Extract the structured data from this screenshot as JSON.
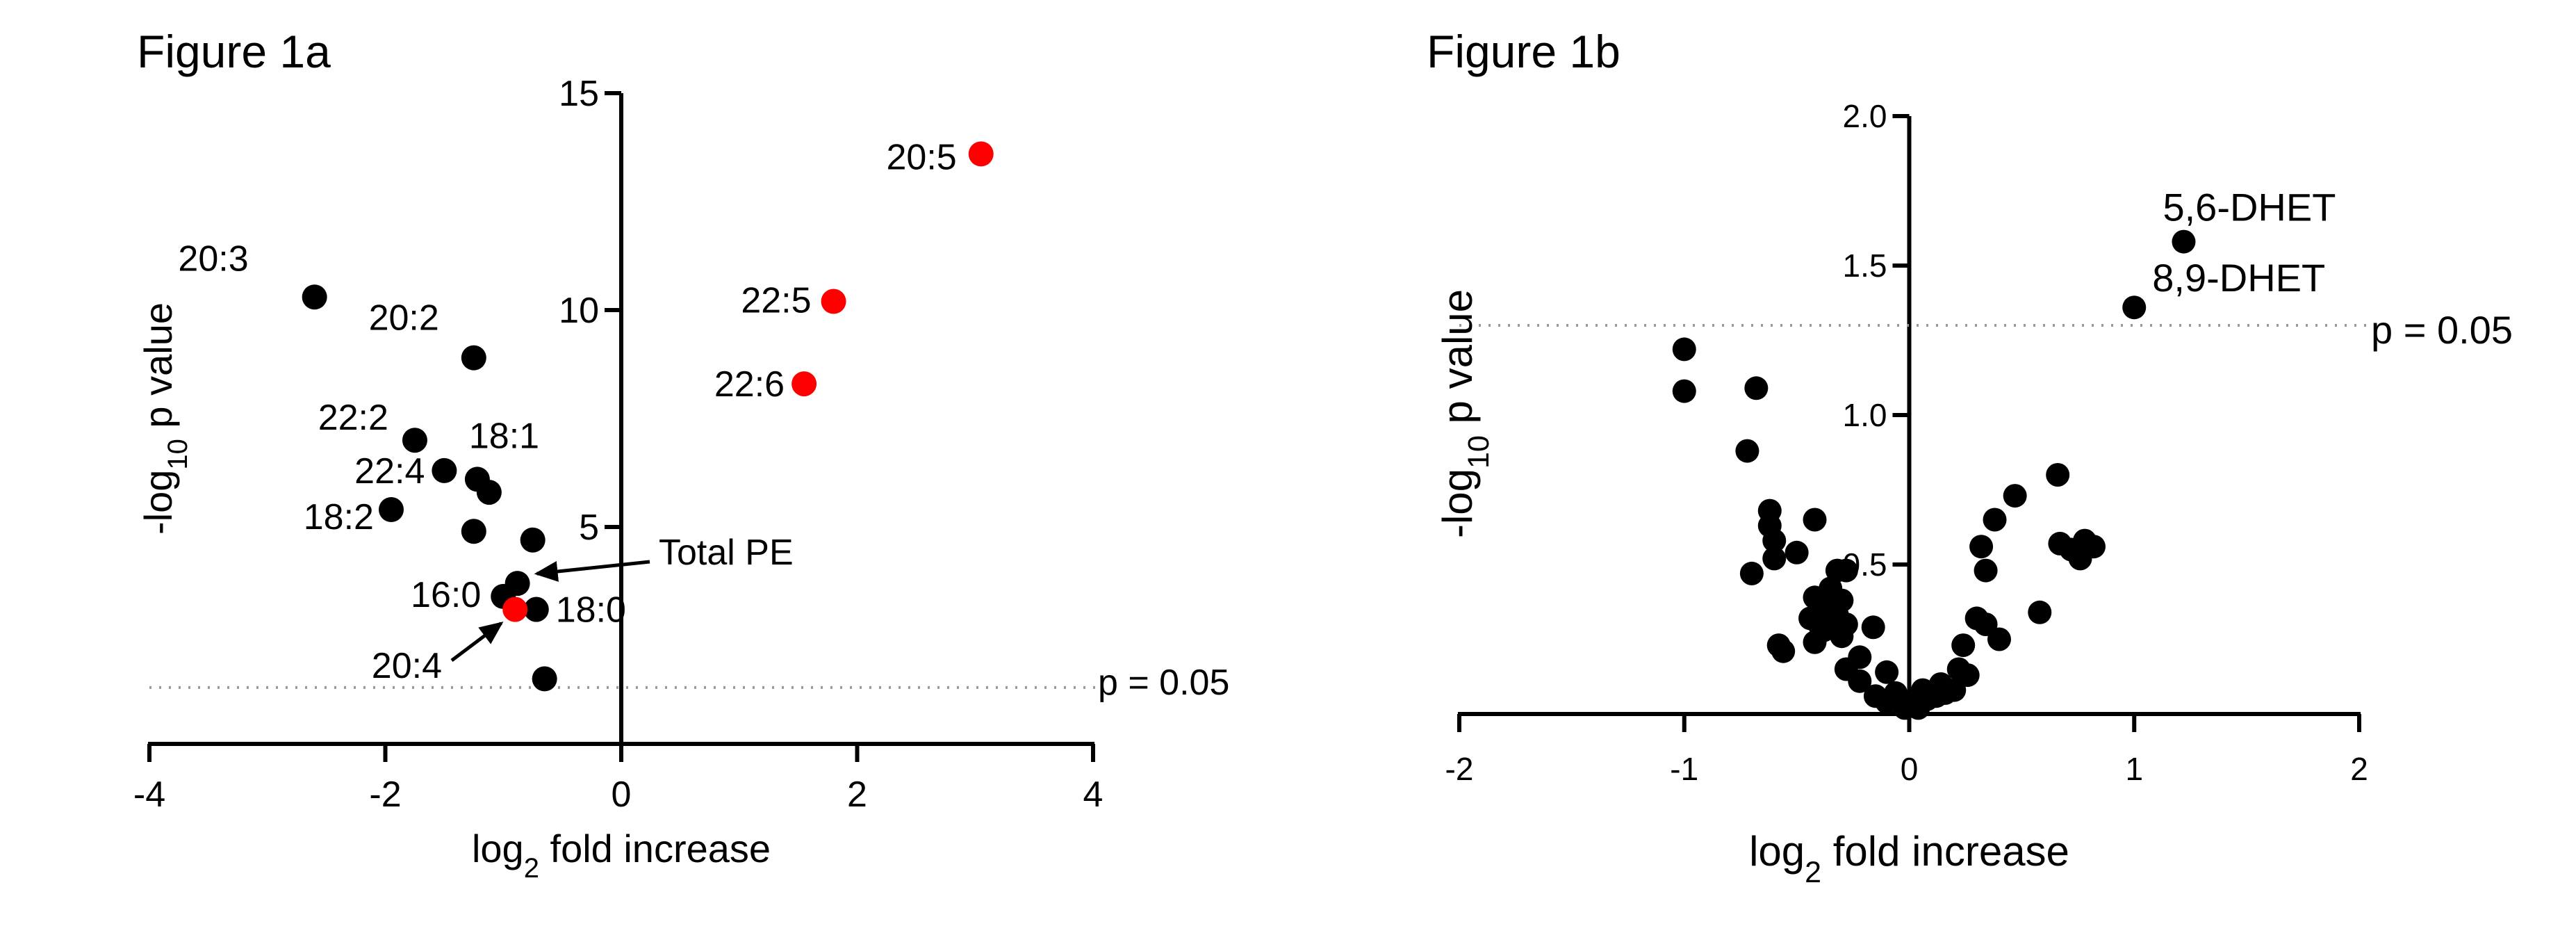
{
  "colors": {
    "black": "#000000",
    "red": "#ff0000",
    "threshold": "#9a9a9a"
  },
  "chart_data": [
    {
      "type": "scatter",
      "title": "Figure 1a",
      "xlabel_parts": [
        "log",
        "2",
        " fold increase"
      ],
      "ylabel_parts": [
        "-log",
        "10",
        " p value"
      ],
      "xlim": [
        -4,
        4
      ],
      "ylim": [
        0,
        15
      ],
      "xticks": [
        -4,
        -2,
        0,
        2,
        4
      ],
      "yticks": [
        5,
        10,
        15
      ],
      "threshold": {
        "y": 1.3,
        "label": "p = 0.05"
      },
      "points": [
        {
          "x": -2.6,
          "y": 10.3,
          "label": "20:3",
          "color": "black"
        },
        {
          "x": -1.25,
          "y": 8.9,
          "label": "20:2",
          "color": "black"
        },
        {
          "x": -1.75,
          "y": 7.0,
          "label": "22:2",
          "color": "black"
        },
        {
          "x": -1.5,
          "y": 6.3,
          "label": "22:4",
          "color": "black"
        },
        {
          "x": -1.22,
          "y": 6.1,
          "label": "18:1",
          "color": "black"
        },
        {
          "x": -1.12,
          "y": 5.8,
          "label": "",
          "color": "black"
        },
        {
          "x": -1.95,
          "y": 5.4,
          "label": "18:2",
          "color": "black"
        },
        {
          "x": -1.25,
          "y": 4.9,
          "label": "",
          "color": "black"
        },
        {
          "x": -0.75,
          "y": 4.7,
          "label": "",
          "color": "black"
        },
        {
          "x": -0.88,
          "y": 3.7,
          "label": "",
          "color": "black"
        },
        {
          "x": -1.0,
          "y": 3.4,
          "label": "16:0",
          "color": "black"
        },
        {
          "x": -0.72,
          "y": 3.1,
          "label": "18:0",
          "color": "black"
        },
        {
          "x": -0.65,
          "y": 1.5,
          "label": "",
          "color": "black"
        },
        {
          "x": -0.9,
          "y": 3.1,
          "label": "",
          "color": "red"
        },
        {
          "x": 1.55,
          "y": 8.3,
          "label": "22:6",
          "color": "red"
        },
        {
          "x": 1.8,
          "y": 10.2,
          "label": "22:5",
          "color": "red"
        },
        {
          "x": 3.05,
          "y": 13.6,
          "label": "20:5",
          "color": "red"
        }
      ],
      "annotations": [
        {
          "text": "Total PE",
          "x": -0.88,
          "y": 3.7
        },
        {
          "text": "20:4",
          "x": -0.9,
          "y": 3.1
        }
      ]
    },
    {
      "type": "scatter",
      "title": "Figure 1b",
      "xlabel_parts": [
        "log",
        "2",
        " fold increase"
      ],
      "ylabel_parts": [
        "-log",
        "10",
        " p value"
      ],
      "xlim": [
        -2,
        2
      ],
      "ylim": [
        0,
        2.0
      ],
      "xticks": [
        -2,
        -1,
        0,
        1,
        2
      ],
      "yticks": [
        "0.5",
        "1.0",
        "1.5",
        "2.0"
      ],
      "threshold": {
        "y": 1.3,
        "label": "p = 0.05"
      },
      "points": [
        {
          "x": 1.22,
          "y": 1.58,
          "label": "5,6-DHET"
        },
        {
          "x": 1.0,
          "y": 1.36,
          "label": "8,9-DHET"
        },
        {
          "x": -1.0,
          "y": 1.22,
          "label": ""
        },
        {
          "x": -1.0,
          "y": 1.08,
          "label": ""
        },
        {
          "x": -0.68,
          "y": 1.09,
          "label": ""
        },
        {
          "x": -0.72,
          "y": 0.88,
          "label": ""
        },
        {
          "x": -0.62,
          "y": 0.68,
          "label": ""
        },
        {
          "x": -0.62,
          "y": 0.63,
          "label": ""
        },
        {
          "x": -0.6,
          "y": 0.58,
          "label": ""
        },
        {
          "x": -0.6,
          "y": 0.52,
          "label": ""
        },
        {
          "x": -0.5,
          "y": 0.54,
          "label": ""
        },
        {
          "x": -0.42,
          "y": 0.65,
          "label": ""
        },
        {
          "x": -0.7,
          "y": 0.47,
          "label": ""
        },
        {
          "x": -0.32,
          "y": 0.48,
          "label": ""
        },
        {
          "x": -0.28,
          "y": 0.48,
          "label": ""
        },
        {
          "x": -0.35,
          "y": 0.42,
          "label": ""
        },
        {
          "x": -0.3,
          "y": 0.38,
          "label": ""
        },
        {
          "x": -0.42,
          "y": 0.39,
          "label": ""
        },
        {
          "x": -0.38,
          "y": 0.36,
          "label": ""
        },
        {
          "x": -0.32,
          "y": 0.33,
          "label": ""
        },
        {
          "x": -0.44,
          "y": 0.32,
          "label": ""
        },
        {
          "x": -0.38,
          "y": 0.28,
          "label": ""
        },
        {
          "x": -0.4,
          "y": 0.3,
          "label": ""
        },
        {
          "x": -0.28,
          "y": 0.3,
          "label": ""
        },
        {
          "x": -0.3,
          "y": 0.26,
          "label": ""
        },
        {
          "x": -0.16,
          "y": 0.29,
          "label": ""
        },
        {
          "x": -0.42,
          "y": 0.24,
          "label": ""
        },
        {
          "x": -0.58,
          "y": 0.23,
          "label": ""
        },
        {
          "x": -0.56,
          "y": 0.21,
          "label": ""
        },
        {
          "x": -0.22,
          "y": 0.19,
          "label": ""
        },
        {
          "x": -0.28,
          "y": 0.15,
          "label": ""
        },
        {
          "x": -0.1,
          "y": 0.14,
          "label": ""
        },
        {
          "x": -0.22,
          "y": 0.11,
          "label": ""
        },
        {
          "x": -0.06,
          "y": 0.07,
          "label": ""
        },
        {
          "x": -0.15,
          "y": 0.06,
          "label": ""
        },
        {
          "x": -0.1,
          "y": 0.04,
          "label": ""
        },
        {
          "x": -0.02,
          "y": 0.02,
          "label": ""
        },
        {
          "x": 0.02,
          "y": 0.04,
          "label": ""
        },
        {
          "x": 0.04,
          "y": 0.02,
          "label": ""
        },
        {
          "x": 0.06,
          "y": 0.08,
          "label": ""
        },
        {
          "x": 0.08,
          "y": 0.05,
          "label": ""
        },
        {
          "x": 0.12,
          "y": 0.06,
          "label": ""
        },
        {
          "x": 0.14,
          "y": 0.1,
          "label": ""
        },
        {
          "x": 0.16,
          "y": 0.07,
          "label": ""
        },
        {
          "x": 0.2,
          "y": 0.08,
          "label": ""
        },
        {
          "x": 0.22,
          "y": 0.15,
          "label": ""
        },
        {
          "x": 0.26,
          "y": 0.13,
          "label": ""
        },
        {
          "x": 0.24,
          "y": 0.23,
          "label": ""
        },
        {
          "x": 0.3,
          "y": 0.32,
          "label": ""
        },
        {
          "x": 0.34,
          "y": 0.3,
          "label": ""
        },
        {
          "x": 0.4,
          "y": 0.25,
          "label": ""
        },
        {
          "x": 0.32,
          "y": 0.56,
          "label": ""
        },
        {
          "x": 0.34,
          "y": 0.48,
          "label": ""
        },
        {
          "x": 0.38,
          "y": 0.65,
          "label": ""
        },
        {
          "x": 0.47,
          "y": 0.73,
          "label": ""
        },
        {
          "x": 0.58,
          "y": 0.34,
          "label": ""
        },
        {
          "x": 0.66,
          "y": 0.8,
          "label": ""
        },
        {
          "x": 0.67,
          "y": 0.57,
          "label": ""
        },
        {
          "x": 0.72,
          "y": 0.55,
          "label": ""
        },
        {
          "x": 0.76,
          "y": 0.52,
          "label": ""
        },
        {
          "x": 0.78,
          "y": 0.58,
          "label": ""
        },
        {
          "x": 0.82,
          "y": 0.56,
          "label": ""
        }
      ]
    }
  ]
}
